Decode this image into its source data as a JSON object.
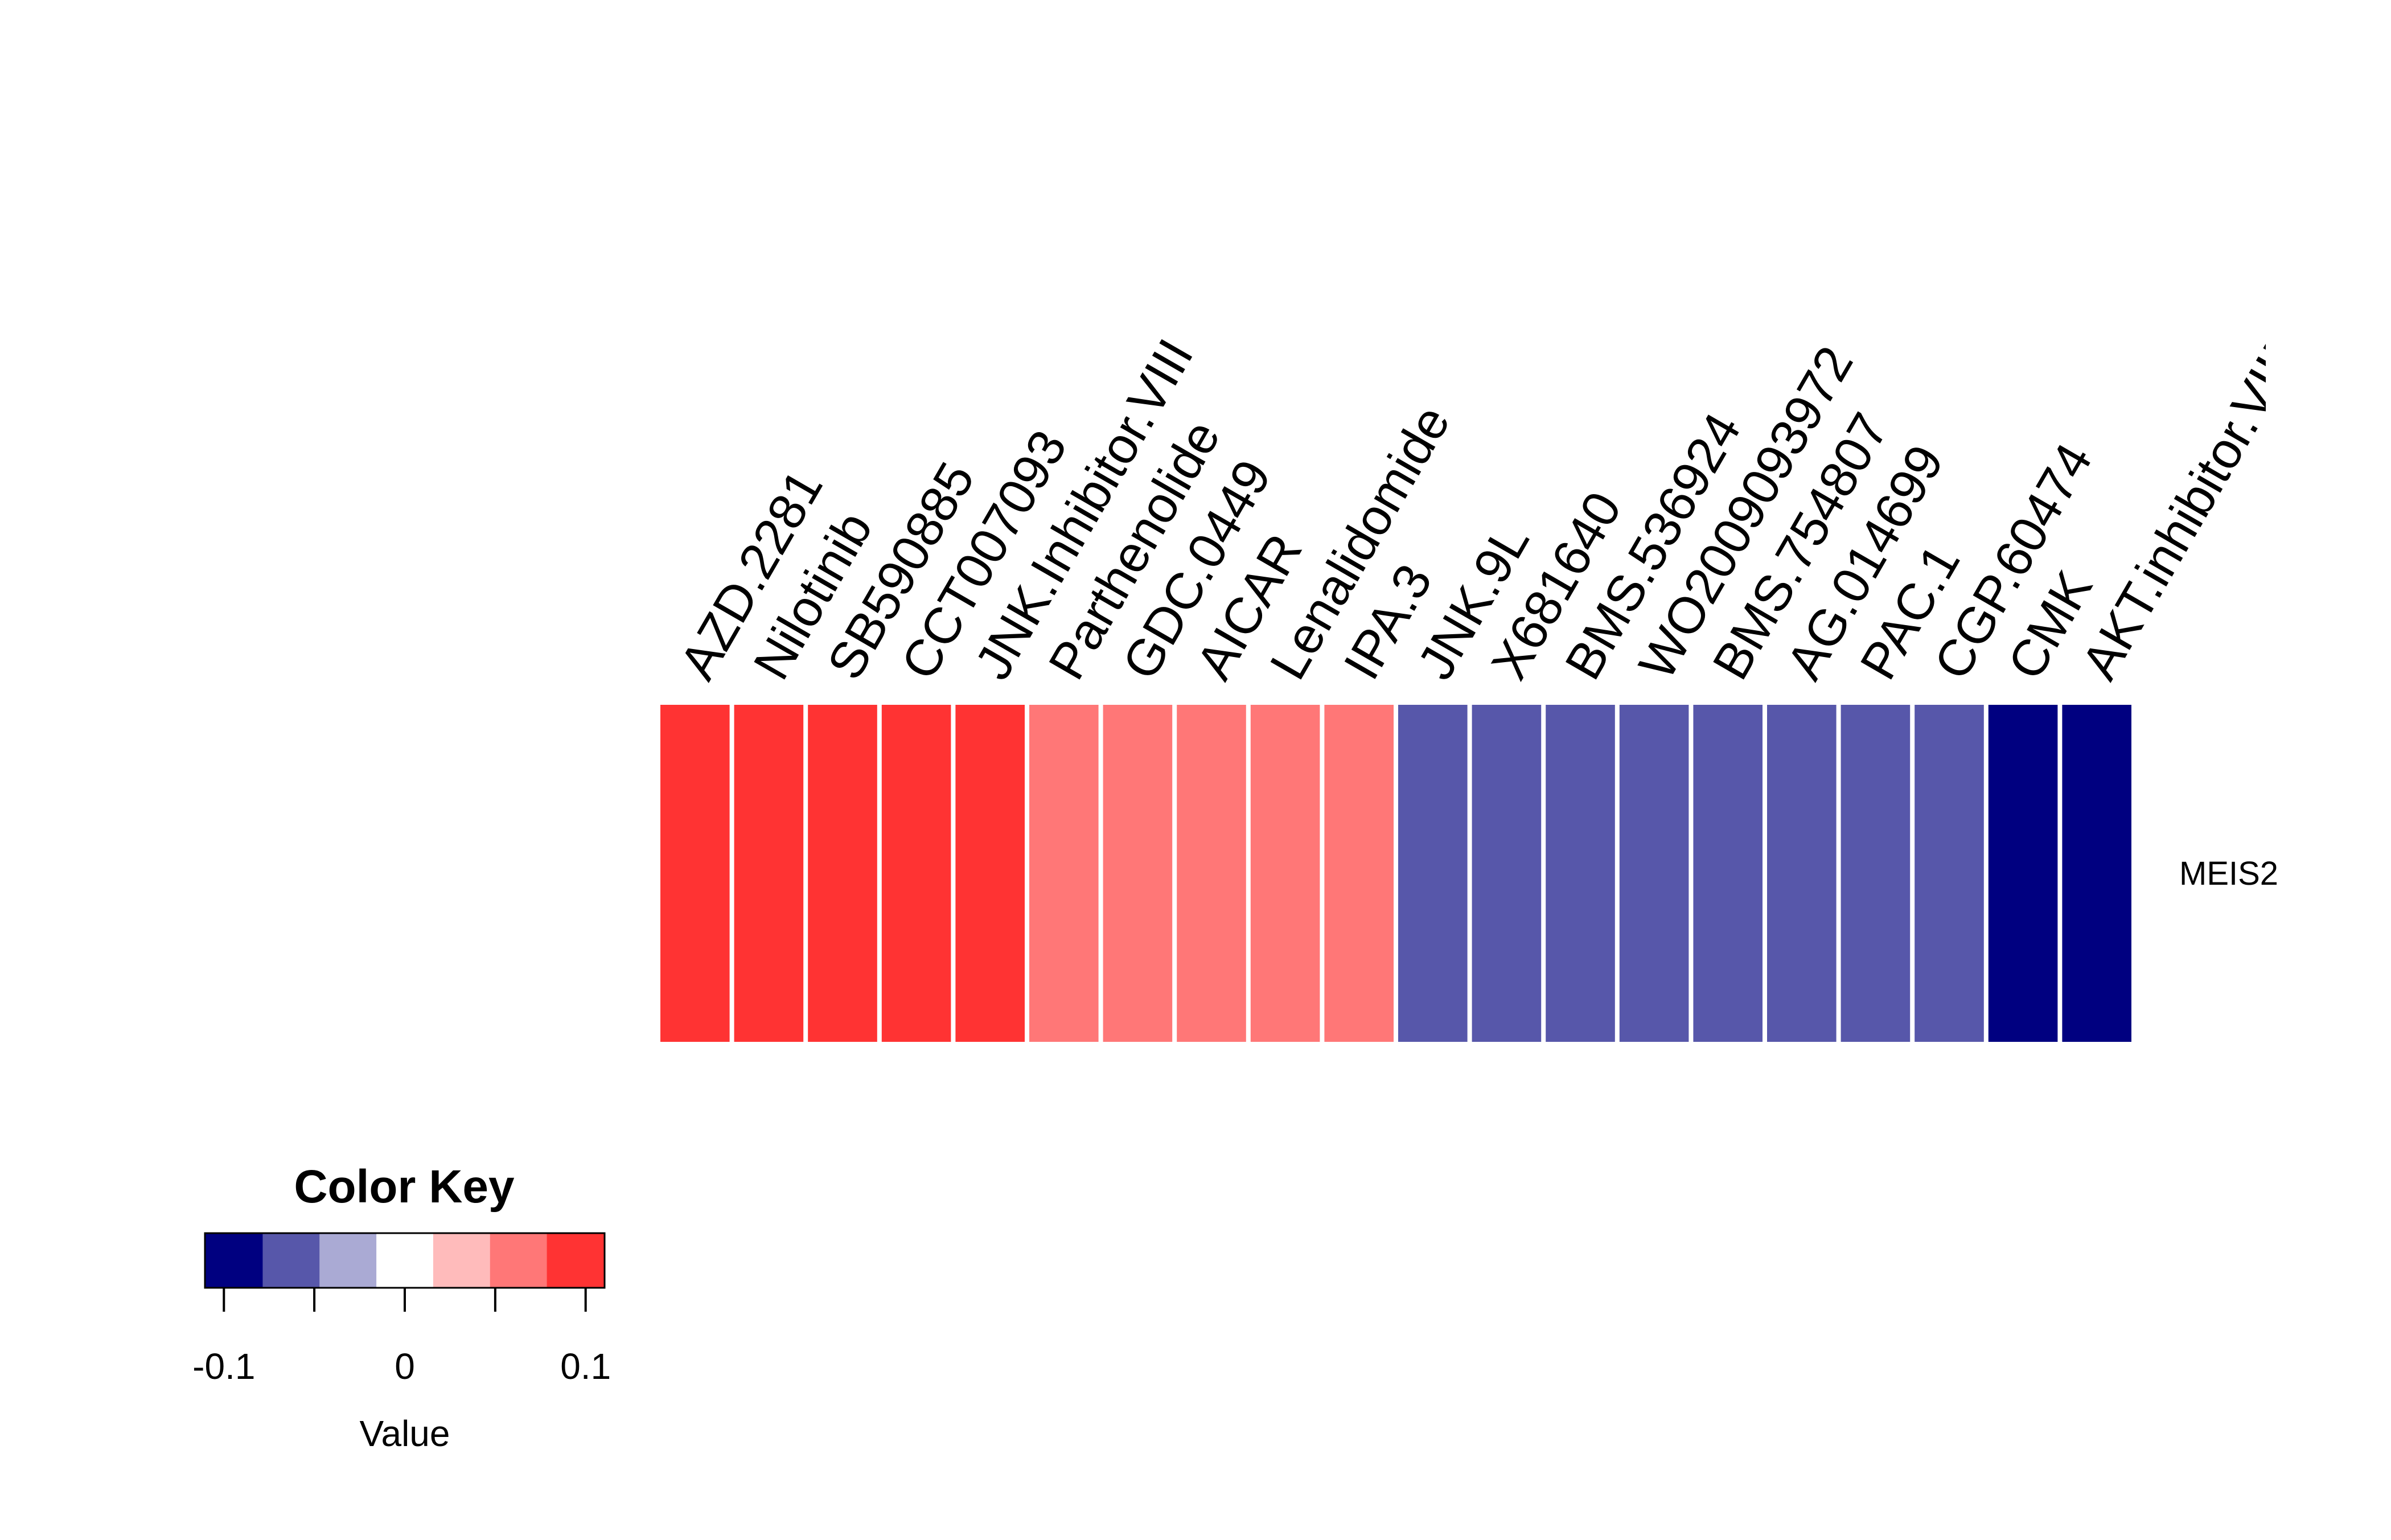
{
  "chart_data": {
    "type": "heatmap",
    "rows": [
      "MEIS2"
    ],
    "columns": [
      "AZD.2281",
      "Nilotinib",
      "SB590885",
      "CCT007093",
      "JNK.Inhibitor.VIII",
      "Parthenolide",
      "GDC.0449",
      "AICAR",
      "Lenalidomide",
      "IPA.3",
      "JNK.9L",
      "X681640",
      "BMS.536924",
      "WO2009093972",
      "BMS.754807",
      "AG.014699",
      "PAC.1",
      "CGP.60474",
      "CMK",
      "AKT.inhibitor.VIII"
    ],
    "values": [
      [
        0.1,
        0.1,
        0.1,
        0.1,
        0.1,
        0.07,
        0.07,
        0.07,
        0.07,
        0.07,
        -0.07,
        -0.07,
        -0.07,
        -0.07,
        -0.07,
        -0.07,
        -0.07,
        -0.07,
        -0.1,
        -0.1
      ]
    ],
    "color_key": {
      "title": "Color Key",
      "xlabel": "Value",
      "ticks": [
        "-0.1",
        "0",
        "0.1"
      ],
      "tick_values": [
        -0.1,
        0,
        0.1
      ],
      "range": [
        -0.11,
        0.11
      ],
      "colors": [
        "#000080",
        "#5757aa",
        "#aaaad4",
        "#ffffff",
        "#ffbbbb",
        "#ff7777",
        "#ff3333"
      ]
    }
  }
}
